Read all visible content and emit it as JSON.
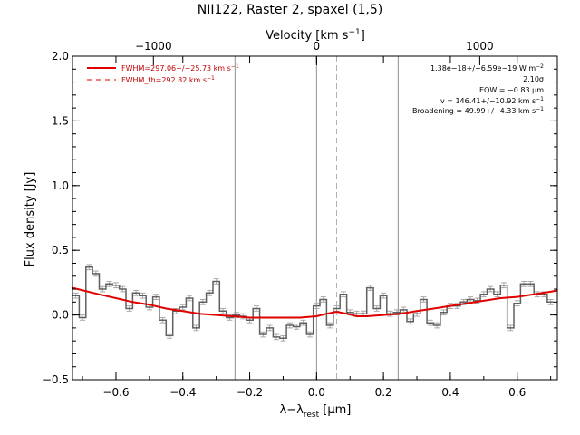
{
  "chart_data": {
    "type": "line",
    "title": "NII122, Raster 2, spaxel (1,5)",
    "xlabel_pre": "λ−λ",
    "xlabel_sub": "rest",
    "xlabel_post": " [μm]",
    "ylabel": "Flux density [Jy]",
    "top_axis_label_pre": "Velocity [km s",
    "top_axis_label_sup": "−1",
    "top_axis_label_post": "]",
    "xlim": [
      -0.73,
      0.72
    ],
    "ylim": [
      -0.5,
      2.0
    ],
    "x_ticks": [
      -0.6,
      -0.4,
      -0.2,
      0.0,
      0.2,
      0.4,
      0.6
    ],
    "x_tick_labels": [
      "−0.6",
      "−0.4",
      "−0.2",
      "0.0",
      "0.2",
      "0.4",
      "0.6"
    ],
    "y_ticks": [
      -0.5,
      0.0,
      0.5,
      1.0,
      1.5,
      2.0
    ],
    "y_tick_labels": [
      "−0.5",
      "0.0",
      "0.5",
      "1.0",
      "1.5",
      "2.0"
    ],
    "top_ticks_x": [
      -0.488,
      0.0,
      0.488
    ],
    "top_tick_labels": [
      "−1000",
      "0",
      "1000"
    ],
    "vlines_solid": [
      -0.244,
      0.0,
      0.244
    ],
    "vline_dashed": 0.06,
    "colors": {
      "fit": "#e00000",
      "data": "#606060",
      "errorbar": "#a8a8a8",
      "vline": "#909090",
      "legend_text": "#c00000"
    },
    "legend": [
      {
        "style": "solid",
        "label": "FWHM=297.06+/−25.73 km s",
        "sup": "−1"
      },
      {
        "style": "dashed",
        "label": "FWHM_th=292.82 km s",
        "sup": "−1"
      }
    ],
    "annotations": [
      {
        "text": "1.38e−18+/−6.59e−19 W m",
        "sup": "−2"
      },
      {
        "text": "2.10σ",
        "sup": ""
      },
      {
        "text": "EQW = −0.83 μm",
        "sup": ""
      },
      {
        "text": "v = 146.41+/−10.92 km s",
        "sup": "−1"
      },
      {
        "text": "Broadening = 49.99+/−4.33 km s",
        "sup": "−1"
      }
    ],
    "series": [
      {
        "style": "step",
        "x": [
          -0.72,
          -0.7,
          -0.68,
          -0.66,
          -0.64,
          -0.62,
          -0.6,
          -0.58,
          -0.56,
          -0.54,
          -0.52,
          -0.5,
          -0.48,
          -0.46,
          -0.44,
          -0.42,
          -0.4,
          -0.38,
          -0.36,
          -0.34,
          -0.32,
          -0.3,
          -0.28,
          -0.26,
          -0.24,
          -0.22,
          -0.2,
          -0.18,
          -0.16,
          -0.14,
          -0.12,
          -0.1,
          -0.08,
          -0.06,
          -0.04,
          -0.02,
          0.0,
          0.02,
          0.04,
          0.06,
          0.08,
          0.1,
          0.12,
          0.14,
          0.16,
          0.18,
          0.2,
          0.22,
          0.24,
          0.26,
          0.28,
          0.3,
          0.32,
          0.34,
          0.36,
          0.38,
          0.4,
          0.42,
          0.44,
          0.46,
          0.48,
          0.5,
          0.52,
          0.54,
          0.56,
          0.58,
          0.6,
          0.62,
          0.64,
          0.66,
          0.68,
          0.7
        ],
        "values": [
          0.15,
          -0.02,
          0.37,
          0.32,
          0.2,
          0.24,
          0.23,
          0.2,
          0.05,
          0.17,
          0.15,
          0.06,
          0.14,
          -0.04,
          -0.16,
          0.03,
          0.06,
          0.13,
          -0.1,
          0.1,
          0.17,
          0.26,
          0.03,
          -0.02,
          0.0,
          -0.01,
          -0.04,
          0.05,
          -0.15,
          -0.1,
          -0.17,
          -0.18,
          -0.08,
          -0.09,
          -0.06,
          -0.15,
          0.07,
          0.12,
          -0.08,
          0.05,
          0.16,
          0.02,
          0.01,
          0.01,
          0.21,
          0.05,
          0.15,
          0.01,
          0.02,
          0.04,
          -0.05,
          0.01,
          0.12,
          -0.06,
          -0.08,
          0.02,
          0.07,
          0.07,
          0.1,
          0.12,
          0.11,
          0.16,
          0.2,
          0.16,
          0.23,
          -0.1,
          0.09,
          0.24,
          0.24,
          0.16,
          0.16,
          0.1
        ],
        "errors": [
          0.02,
          0.02,
          0.02,
          0.02,
          0.02,
          0.02,
          0.02,
          0.02,
          0.02,
          0.02,
          0.02,
          0.02,
          0.02,
          0.02,
          0.02,
          0.02,
          0.02,
          0.02,
          0.02,
          0.02,
          0.02,
          0.02,
          0.02,
          0.02,
          0.02,
          0.02,
          0.02,
          0.02,
          0.02,
          0.02,
          0.02,
          0.02,
          0.02,
          0.02,
          0.02,
          0.02,
          0.02,
          0.02,
          0.02,
          0.02,
          0.02,
          0.02,
          0.02,
          0.02,
          0.02,
          0.02,
          0.02,
          0.02,
          0.02,
          0.02,
          0.02,
          0.02,
          0.02,
          0.02,
          0.02,
          0.02,
          0.02,
          0.02,
          0.02,
          0.02,
          0.02,
          0.02,
          0.02,
          0.02,
          0.02,
          0.02,
          0.02,
          0.02,
          0.02,
          0.02,
          0.02,
          0.02
        ]
      },
      {
        "style": "fit",
        "x": [
          -0.73,
          -0.65,
          -0.6,
          -0.55,
          -0.5,
          -0.45,
          -0.4,
          -0.35,
          -0.3,
          -0.25,
          -0.2,
          -0.15,
          -0.1,
          -0.05,
          0.0,
          0.03,
          0.06,
          0.09,
          0.12,
          0.15,
          0.2,
          0.25,
          0.3,
          0.35,
          0.4,
          0.45,
          0.5,
          0.55,
          0.6,
          0.65,
          0.7,
          0.72
        ],
        "values": [
          0.21,
          0.16,
          0.13,
          0.1,
          0.08,
          0.05,
          0.03,
          0.01,
          0.0,
          -0.01,
          -0.02,
          -0.02,
          -0.02,
          -0.02,
          -0.01,
          0.01,
          0.025,
          0.01,
          -0.01,
          -0.01,
          0.0,
          0.01,
          0.03,
          0.05,
          0.07,
          0.09,
          0.11,
          0.13,
          0.14,
          0.16,
          0.18,
          0.19
        ]
      }
    ]
  }
}
